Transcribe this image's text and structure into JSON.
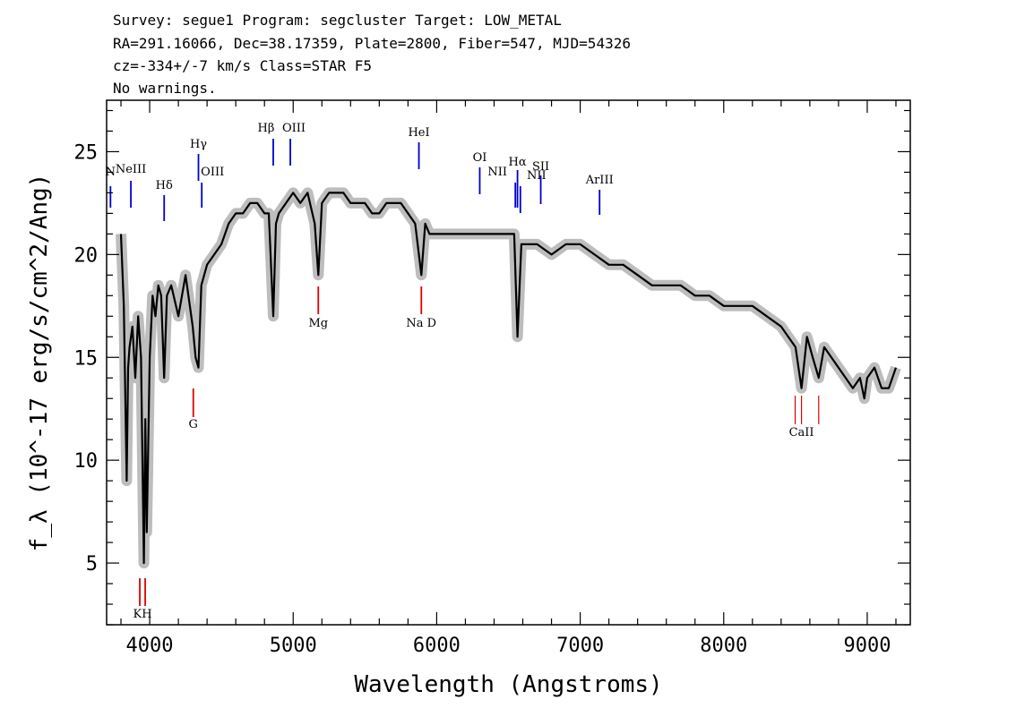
{
  "header": {
    "line1": "Survey: segue1 Program: segcluster Target: LOW_METAL",
    "line2": "RA=291.16066, Dec=38.17359, Plate=2800, Fiber=547, MJD=54326",
    "line3": "cz=-334+/-7 km/s Class=STAR F5",
    "line4": "No warnings."
  },
  "chart_data": {
    "type": "line",
    "xlabel": "Wavelength (Angstroms)",
    "ylabel": "f_λ (10^-17 erg/s/cm^2/Ang)",
    "xlim": [
      3700,
      9300
    ],
    "ylim": [
      2,
      27.5
    ],
    "xticks": [
      4000,
      5000,
      6000,
      7000,
      8000,
      9000
    ],
    "xtick_labels": [
      "4000",
      "5000",
      "6000",
      "7000",
      "8000",
      "9000"
    ],
    "yticks": [
      5,
      10,
      15,
      20,
      25
    ],
    "ytick_labels": [
      "5",
      "10",
      "15",
      "20",
      "25"
    ],
    "grid": false,
    "colors": {
      "flux": "#000000",
      "error_band": "#bdbdbd",
      "emission": "#0000cc",
      "absorption": "#dd0000"
    },
    "series": [
      {
        "name": "flux",
        "x": [
          3800,
          3820,
          3840,
          3850,
          3860,
          3880,
          3900,
          3920,
          3940,
          3960,
          3970,
          3980,
          4000,
          4020,
          4040,
          4060,
          4080,
          4101,
          4120,
          4150,
          4200,
          4250,
          4300,
          4320,
          4340,
          4360,
          4400,
          4450,
          4500,
          4550,
          4600,
          4650,
          4700,
          4750,
          4800,
          4830,
          4861,
          4880,
          4900,
          4950,
          5000,
          5050,
          5100,
          5150,
          5175,
          5200,
          5250,
          5300,
          5350,
          5400,
          5450,
          5500,
          5550,
          5600,
          5650,
          5700,
          5750,
          5800,
          5850,
          5893,
          5920,
          5950,
          6000,
          6100,
          6200,
          6300,
          6400,
          6500,
          6540,
          6563,
          6590,
          6650,
          6700,
          6800,
          6900,
          7000,
          7100,
          7200,
          7300,
          7400,
          7500,
          7600,
          7700,
          7800,
          7900,
          8000,
          8100,
          8200,
          8300,
          8400,
          8450,
          8500,
          8542,
          8580,
          8620,
          8662,
          8700,
          8750,
          8800,
          8850,
          8900,
          8950,
          8980,
          9000,
          9050,
          9100,
          9150,
          9200
        ],
        "y": [
          21.0,
          17.5,
          9.0,
          14.5,
          15.5,
          16.5,
          14.0,
          17.0,
          15.0,
          5.0,
          12.0,
          6.5,
          15.0,
          18.0,
          17.0,
          18.5,
          18.0,
          14.0,
          18.0,
          18.5,
          17.0,
          19.0,
          16.5,
          15.0,
          14.5,
          18.5,
          19.5,
          20.0,
          20.5,
          21.5,
          22.0,
          22.0,
          22.5,
          22.5,
          22.0,
          22.0,
          17.0,
          21.5,
          22.0,
          22.5,
          23.0,
          22.5,
          23.0,
          21.5,
          19.0,
          22.5,
          23.0,
          23.0,
          23.0,
          22.5,
          22.5,
          22.5,
          22.0,
          22.0,
          22.5,
          22.5,
          22.5,
          22.0,
          21.5,
          19.0,
          21.5,
          21.0,
          21.0,
          21.0,
          21.0,
          21.0,
          21.0,
          21.0,
          21.0,
          16.0,
          20.5,
          20.5,
          20.5,
          20.0,
          20.5,
          20.5,
          20.0,
          19.5,
          19.5,
          19.0,
          18.5,
          18.5,
          18.5,
          18.0,
          18.0,
          17.5,
          17.5,
          17.5,
          17.0,
          16.5,
          16.0,
          15.5,
          13.5,
          16.0,
          15.0,
          14.0,
          15.5,
          15.0,
          14.5,
          14.0,
          13.5,
          14.0,
          13.0,
          14.0,
          14.5,
          13.5,
          13.5,
          14.5
        ]
      }
    ],
    "line_labels": [
      {
        "name": "N",
        "kind": "emission",
        "wavelength": 3727,
        "text": "N"
      },
      {
        "name": "NeIII",
        "kind": "emission",
        "wavelength": 3869,
        "text": "NeIII"
      },
      {
        "name": "Hdelta",
        "kind": "emission",
        "wavelength": 4101,
        "text": "Hδ"
      },
      {
        "name": "Hgamma",
        "kind": "emission",
        "wavelength": 4340,
        "text": "Hγ"
      },
      {
        "name": "OIII_4363",
        "kind": "emission",
        "wavelength": 4363,
        "text": "OIII"
      },
      {
        "name": "Hbeta",
        "kind": "emission",
        "wavelength": 4861,
        "text": "Hβ"
      },
      {
        "name": "OIII_5007",
        "kind": "emission",
        "wavelength": 4980,
        "text": "OIII"
      },
      {
        "name": "HeI",
        "kind": "emission",
        "wavelength": 5876,
        "text": "HeI"
      },
      {
        "name": "OI",
        "kind": "emission",
        "wavelength": 6300,
        "text": "OI"
      },
      {
        "name": "NII_6548",
        "kind": "emission",
        "wavelength": 6548,
        "text": "NII"
      },
      {
        "name": "Halpha",
        "kind": "emission",
        "wavelength": 6563,
        "text": "Hα"
      },
      {
        "name": "NII_6583",
        "kind": "emission",
        "wavelength": 6583,
        "text": "NII"
      },
      {
        "name": "SII",
        "kind": "emission",
        "wavelength": 6725,
        "text": "SII"
      },
      {
        "name": "ArIII",
        "kind": "emission",
        "wavelength": 7135,
        "text": "ArIII"
      },
      {
        "name": "KH",
        "kind": "absorption",
        "wavelength": 3950,
        "text": "KH"
      },
      {
        "name": "G",
        "kind": "absorption",
        "wavelength": 4304,
        "text": "G"
      },
      {
        "name": "Mg",
        "kind": "absorption",
        "wavelength": 5175,
        "text": "Mg"
      },
      {
        "name": "NaD",
        "kind": "absorption",
        "wavelength": 5893,
        "text": "Na D"
      },
      {
        "name": "CaII",
        "kind": "absorption",
        "wavelength": 8542,
        "text": "CaII"
      }
    ]
  }
}
